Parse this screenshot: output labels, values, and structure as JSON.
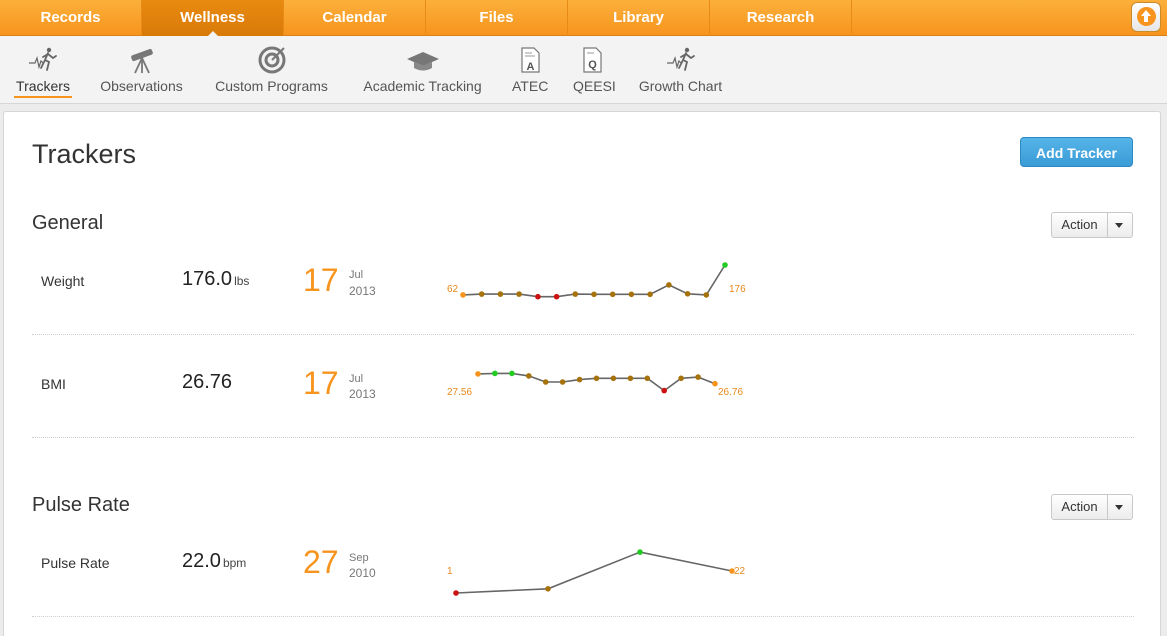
{
  "topnav": {
    "tabs": [
      {
        "label": "Records"
      },
      {
        "label": "Wellness"
      },
      {
        "label": "Calendar"
      },
      {
        "label": "Files"
      },
      {
        "label": "Library"
      },
      {
        "label": "Research"
      }
    ],
    "active_tab": "Wellness"
  },
  "subnav": {
    "items": [
      {
        "label": "Trackers",
        "icon": "runner-heartbeat-icon"
      },
      {
        "label": "Observations",
        "icon": "telescope-icon"
      },
      {
        "label": "Custom Programs",
        "icon": "target-icon"
      },
      {
        "label": "Academic Tracking",
        "icon": "graduation-cap-icon"
      },
      {
        "label": "ATEC",
        "icon": "document-a-icon"
      },
      {
        "label": "QEESI",
        "icon": "document-q-icon"
      },
      {
        "label": "Growth Chart",
        "icon": "runner-heartbeat-icon"
      }
    ],
    "active_item": "Trackers"
  },
  "page": {
    "title": "Trackers",
    "add_button": "Add Tracker"
  },
  "sections": [
    {
      "title": "General",
      "action_label": "Action",
      "rows": [
        {
          "label": "Weight",
          "value": "176.0",
          "unit": "lbs",
          "day": "17",
          "month": "Jul",
          "year": "2013",
          "spark_first_label": "62",
          "spark_last_label": "176"
        },
        {
          "label": "BMI",
          "value": "26.76",
          "unit": "",
          "day": "17",
          "month": "Jul",
          "year": "2013",
          "spark_first_label": "27.56",
          "spark_last_label": "26.76"
        }
      ]
    },
    {
      "title": "Pulse Rate",
      "action_label": "Action",
      "rows": [
        {
          "label": "Pulse Rate",
          "value": "22.0",
          "unit": "bpm",
          "day": "27",
          "month": "Sep",
          "year": "2010",
          "spark_first_label": "1",
          "spark_last_label": "22"
        }
      ]
    }
  ],
  "chart_data": [
    {
      "type": "line",
      "name": "weight-sparkline",
      "values": [
        62,
        65,
        65,
        65,
        55,
        55,
        65,
        64,
        64,
        64,
        64,
        100,
        66,
        62,
        176
      ],
      "point_colors": [
        "#f7941d",
        "#a6720c",
        "#a6720c",
        "#a6720c",
        "#cc1111",
        "#cc1111",
        "#a6720c",
        "#a6720c",
        "#a6720c",
        "#a6720c",
        "#a6720c",
        "#a6720c",
        "#a6720c",
        "#a6720c",
        "#22cc22"
      ],
      "ylim": [
        50,
        180
      ]
    },
    {
      "type": "line",
      "name": "bmi-sparkline",
      "values": [
        27.56,
        27.6,
        27.6,
        27.4,
        26.9,
        26.9,
        27.1,
        27.2,
        27.2,
        27.2,
        27.2,
        26.2,
        27.2,
        27.3,
        26.76
      ],
      "point_colors": [
        "#f7941d",
        "#22cc22",
        "#22cc22",
        "#a6720c",
        "#a6720c",
        "#a6720c",
        "#a6720c",
        "#a6720c",
        "#a6720c",
        "#a6720c",
        "#a6720c",
        "#cc1111",
        "#a6720c",
        "#a6720c",
        "#f7941d"
      ],
      "ylim": [
        26.0,
        27.8
      ]
    },
    {
      "type": "line",
      "name": "pulse-sparkline",
      "values": [
        1,
        5,
        40,
        22
      ],
      "point_colors": [
        "#cc1111",
        "#a6720c",
        "#22cc22",
        "#f7941d"
      ],
      "ylim": [
        0,
        42
      ]
    }
  ]
}
